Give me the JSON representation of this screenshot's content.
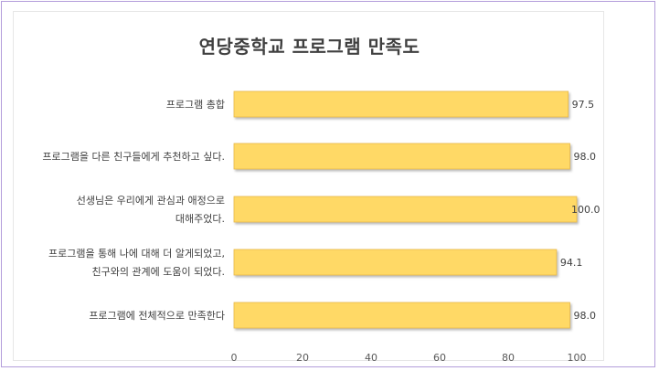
{
  "chart_data": {
    "type": "bar",
    "orientation": "horizontal",
    "title": "연당중학교 프로그램 만족도",
    "categories": [
      "프로그램 총합",
      "프로그램을 다른 친구들에게 추천하고 싶다.",
      [
        "선생님은 우리에게 관심과 애정으로",
        "대해주었다."
      ],
      [
        "프로그램을 통해 나에 대해 더 알게되었고,",
        "친구와의 관계에 도움이 되었다."
      ],
      "프로그램에 전체적으로 만족한다"
    ],
    "values": [
      97.5,
      98.0,
      100.0,
      94.1,
      98.0
    ],
    "value_labels": [
      "97.5",
      "98.0",
      "100.0",
      "94.1",
      "98.0"
    ],
    "xlim": [
      0,
      100
    ],
    "xticks": [
      0,
      20,
      40,
      60,
      80,
      100
    ],
    "grid": false,
    "bar_color": "#ffd966",
    "bar_edge_color": "#e8b84a"
  }
}
